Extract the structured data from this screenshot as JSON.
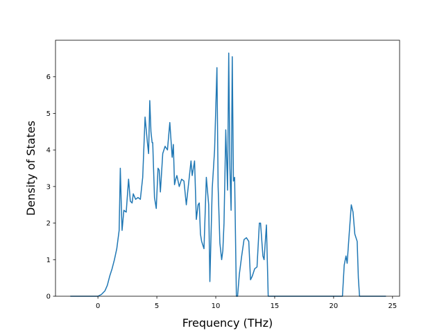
{
  "chart_data": {
    "type": "line",
    "xlabel": "Frequency (THz)",
    "ylabel": "Density of States",
    "xlim": [
      -3.6,
      25.6
    ],
    "ylim": [
      0,
      7.0
    ],
    "x_ticks": [
      0,
      5,
      10,
      15,
      20,
      25
    ],
    "y_ticks": [
      0,
      1,
      2,
      3,
      4,
      5,
      6
    ],
    "grid": false,
    "legend": "none",
    "line_color": "#1f77b4",
    "series": [
      {
        "x": [
          -2.3,
          0.0,
          0.3,
          0.6,
          0.8,
          1.0,
          1.2,
          1.4,
          1.6,
          1.8,
          1.9,
          2.0,
          2.05,
          2.2,
          2.4,
          2.6,
          2.75,
          2.9,
          3.0,
          3.2,
          3.4,
          3.6,
          3.8,
          4.0,
          4.2,
          4.3,
          4.4,
          4.5,
          4.6,
          4.65,
          4.8,
          4.95,
          5.1,
          5.2,
          5.3,
          5.5,
          5.7,
          5.9,
          6.1,
          6.3,
          6.4,
          6.5,
          6.6,
          6.7,
          6.9,
          7.1,
          7.3,
          7.5,
          7.7,
          7.9,
          8.0,
          8.2,
          8.35,
          8.5,
          8.6,
          8.7,
          8.8,
          9.0,
          9.2,
          9.4,
          9.5,
          9.7,
          9.9,
          10.1,
          10.2,
          10.35,
          10.5,
          10.6,
          10.7,
          10.85,
          11.0,
          11.1,
          11.2,
          11.3,
          11.4,
          11.5,
          11.6,
          11.75,
          11.85,
          12.0,
          12.2,
          12.4,
          12.6,
          12.8,
          12.95,
          13.1,
          13.3,
          13.5,
          13.7,
          13.8,
          14.0,
          14.1,
          14.3,
          14.45,
          14.6,
          14.65,
          14.75,
          20.75,
          20.9,
          21.05,
          21.15,
          21.3,
          21.5,
          21.65,
          21.8,
          22.0,
          22.1,
          22.2,
          22.4,
          24.4
        ],
        "y": [
          0.0,
          0.0,
          0.05,
          0.15,
          0.3,
          0.55,
          0.75,
          1.0,
          1.3,
          1.8,
          3.5,
          2.3,
          1.8,
          2.35,
          2.3,
          3.2,
          2.6,
          2.55,
          2.8,
          2.65,
          2.7,
          2.65,
          3.25,
          4.9,
          4.2,
          3.9,
          5.35,
          4.5,
          4.2,
          4.2,
          2.7,
          2.4,
          3.5,
          3.45,
          2.85,
          3.9,
          4.1,
          4.0,
          4.75,
          3.8,
          4.15,
          3.05,
          3.2,
          3.3,
          3.0,
          3.2,
          3.15,
          2.5,
          3.1,
          3.7,
          3.3,
          3.7,
          2.1,
          2.5,
          2.55,
          1.7,
          1.5,
          1.3,
          3.25,
          2.5,
          0.4,
          2.95,
          4.0,
          6.25,
          3.0,
          1.45,
          1.0,
          1.25,
          2.0,
          4.55,
          2.9,
          6.65,
          3.5,
          2.35,
          6.55,
          3.15,
          3.25,
          0.0,
          0.0,
          0.6,
          1.1,
          1.55,
          1.6,
          1.5,
          0.45,
          0.55,
          0.75,
          0.8,
          2.0,
          2.0,
          1.1,
          1.0,
          1.95,
          0.0,
          0.0,
          0.0,
          0.0,
          0.0,
          0.85,
          1.1,
          0.9,
          1.6,
          2.5,
          2.3,
          1.7,
          1.5,
          0.5,
          0.0,
          0.0,
          0.0
        ]
      }
    ]
  }
}
